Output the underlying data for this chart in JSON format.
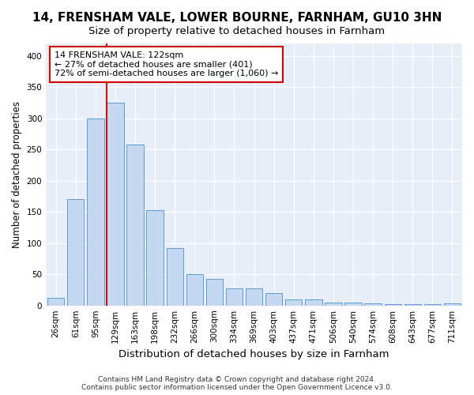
{
  "title": "14, FRENSHAM VALE, LOWER BOURNE, FARNHAM, GU10 3HN",
  "subtitle": "Size of property relative to detached houses in Farnham",
  "xlabel": "Distribution of detached houses by size in Farnham",
  "ylabel": "Number of detached properties",
  "categories": [
    "26sqm",
    "61sqm",
    "95sqm",
    "129sqm",
    "163sqm",
    "198sqm",
    "232sqm",
    "266sqm",
    "300sqm",
    "334sqm",
    "369sqm",
    "403sqm",
    "437sqm",
    "471sqm",
    "506sqm",
    "540sqm",
    "574sqm",
    "608sqm",
    "643sqm",
    "677sqm",
    "711sqm"
  ],
  "values": [
    12,
    170,
    300,
    325,
    258,
    153,
    92,
    50,
    43,
    28,
    28,
    20,
    10,
    10,
    5,
    5,
    4,
    2,
    2,
    2,
    3
  ],
  "bar_color": "#c5d8f0",
  "bar_edge_color": "#5b9bd5",
  "vline_color": "#cc0000",
  "annotation_text": "14 FRENSHAM VALE: 122sqm\n← 27% of detached houses are smaller (401)\n72% of semi-detached houses are larger (1,060) →",
  "annotation_box_color": "#ffffff",
  "annotation_box_edge_color": "#cc0000",
  "ylim": [
    0,
    420
  ],
  "yticks": [
    0,
    50,
    100,
    150,
    200,
    250,
    300,
    350,
    400
  ],
  "background_color": "#e8eef8",
  "grid_color": "#ffffff",
  "title_fontsize": 11,
  "subtitle_fontsize": 9.5,
  "xlabel_fontsize": 9.5,
  "ylabel_fontsize": 8.5,
  "tick_fontsize": 7.5,
  "annotation_fontsize": 8,
  "footer_text": "Contains HM Land Registry data © Crown copyright and database right 2024.\nContains public sector information licensed under the Open Government Licence v3.0."
}
